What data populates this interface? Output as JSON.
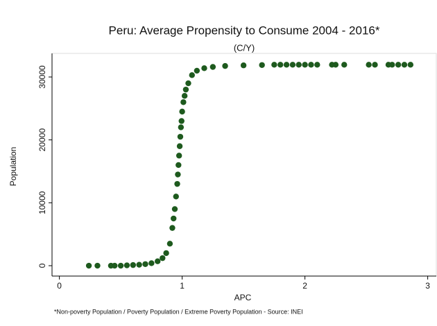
{
  "chart_data": {
    "type": "scatter",
    "title": "Peru: Average Propensity to Consume 2004 - 2016*",
    "subtitle": "(C/Y)",
    "x_label": "APC",
    "y_label": "Population",
    "note": "*Non-poverty Population / Poverty Population / Extreme Poverty Population - Source: INEI",
    "color": "#1e5a1e",
    "xlim": [
      -0.06,
      3.07
    ],
    "ylim": [
      -1650,
      33750
    ],
    "xticks": [
      0,
      1,
      2,
      3
    ],
    "yticks": [
      0,
      10000,
      20000,
      30000
    ],
    "x": [
      0.24,
      0.31,
      0.42,
      0.45,
      0.5,
      0.55,
      0.6,
      0.65,
      0.7,
      0.75,
      0.8,
      0.84,
      0.87,
      0.9,
      0.92,
      0.93,
      0.94,
      0.95,
      0.96,
      0.965,
      0.97,
      0.975,
      0.98,
      0.985,
      0.99,
      0.995,
      1.0,
      1.01,
      1.02,
      1.03,
      1.05,
      1.08,
      1.12,
      1.18,
      1.25,
      1.35,
      1.5,
      1.65,
      1.75,
      1.8,
      1.85,
      1.9,
      1.95,
      2.0,
      2.05,
      2.1,
      2.22,
      2.25,
      2.32,
      2.52,
      2.57,
      2.68,
      2.71,
      2.76,
      2.81,
      2.86
    ],
    "y": [
      0,
      0,
      0,
      0,
      0,
      50,
      100,
      150,
      250,
      400,
      700,
      1200,
      2000,
      3500,
      6000,
      7500,
      9000,
      11000,
      13000,
      14500,
      16000,
      17500,
      19000,
      20500,
      22000,
      23000,
      24500,
      26000,
      27000,
      28000,
      29000,
      30300,
      31000,
      31400,
      31600,
      31750,
      31850,
      31900,
      31950,
      31950,
      31950,
      31950,
      31950,
      31950,
      31950,
      31950,
      31950,
      31950,
      31950,
      31950,
      31950,
      31950,
      31950,
      31950,
      31950,
      31950
    ]
  }
}
